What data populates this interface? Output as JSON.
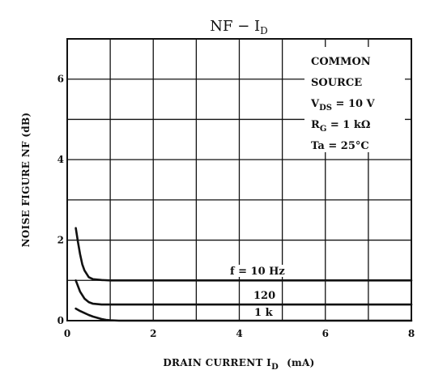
{
  "chart_data": {
    "type": "line",
    "title_main": "NF − I",
    "title_sub": "D",
    "xlabel_main": "DRAIN CURRENT  I",
    "xlabel_sub": "D",
    "xlabel_unit": "(mA)",
    "ylabel": "NOISE FIGURE  NF  (dB)",
    "xlim": [
      0,
      8
    ],
    "ylim": [
      0,
      7
    ],
    "x_ticks": [
      "0",
      "2",
      "4",
      "6",
      "8"
    ],
    "y_ticks": [
      "0",
      "2",
      "4",
      "6"
    ],
    "grid": true,
    "conditions": {
      "line1": "COMMON",
      "line2": "SOURCE",
      "vds_main": "V",
      "vds_sub": "DS",
      "vds_value": " = 10 V",
      "rg_main": "R",
      "rg_sub": "G",
      "rg_value": " = 1 kΩ",
      "ta": "Ta = 25°C"
    },
    "series": [
      {
        "label": "f = 10 Hz",
        "x": [
          0.2,
          0.25,
          0.3,
          0.35,
          0.4,
          0.5,
          0.6,
          0.8,
          1.0,
          2,
          3,
          4,
          5,
          6,
          7,
          8
        ],
        "y": [
          2.3,
          1.95,
          1.65,
          1.4,
          1.25,
          1.08,
          1.03,
          1.01,
          1.0,
          1.0,
          1.0,
          1.0,
          1.0,
          1.0,
          1.0,
          1.0
        ]
      },
      {
        "label": "120",
        "x": [
          0.2,
          0.3,
          0.4,
          0.5,
          0.6,
          0.8,
          1.0,
          1.5,
          2,
          3,
          4,
          5,
          6,
          7,
          8
        ],
        "y": [
          1.0,
          0.72,
          0.55,
          0.46,
          0.42,
          0.4,
          0.4,
          0.4,
          0.4,
          0.4,
          0.4,
          0.4,
          0.4,
          0.4,
          0.4
        ]
      },
      {
        "label": "1 k",
        "x": [
          0.2,
          0.3,
          0.4,
          0.5,
          0.6,
          0.7,
          0.8,
          0.9,
          1.0,
          1.2,
          2,
          3,
          4,
          5,
          6,
          7,
          8
        ],
        "y": [
          0.3,
          0.24,
          0.19,
          0.14,
          0.1,
          0.07,
          0.04,
          0.02,
          0.01,
          0.0,
          0.0,
          0.0,
          0.0,
          0.0,
          0.0,
          0.0,
          0.0
        ]
      }
    ]
  }
}
